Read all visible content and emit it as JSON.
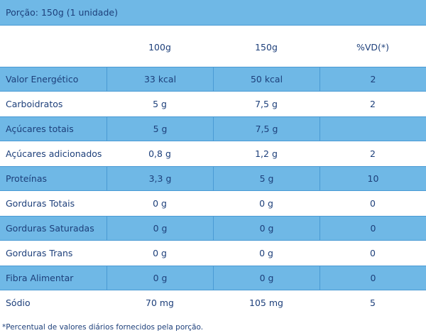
{
  "portion": "Porção: 150g (1 unidade)",
  "columns": [
    "100g",
    "150g",
    "%VD(*)"
  ],
  "rows": [
    {
      "name": "Valor Energético",
      "v100": "33 kcal",
      "v150": "50 kcal",
      "vd": "2"
    },
    {
      "name": "Carboidratos",
      "v100": "5 g",
      "v150": "7,5 g",
      "vd": "2"
    },
    {
      "name": "Açúcares totais",
      "v100": "5 g",
      "v150": "7,5 g",
      "vd": ""
    },
    {
      "name": "Açúcares adicionados",
      "v100": "0,8 g",
      "v150": "1,2 g",
      "vd": "2"
    },
    {
      "name": "Proteínas",
      "v100": "3,3 g",
      "v150": "5 g",
      "vd": "10"
    },
    {
      "name": "Gorduras Totais",
      "v100": "0 g",
      "v150": "0 g",
      "vd": "0"
    },
    {
      "name": "Gorduras Saturadas",
      "v100": "0 g",
      "v150": "0 g",
      "vd": "0"
    },
    {
      "name": "Gorduras Trans",
      "v100": "0 g",
      "v150": "0 g",
      "vd": "0"
    },
    {
      "name": "Fibra Alimentar",
      "v100": "0 g",
      "v150": "0 g",
      "vd": "0"
    },
    {
      "name": "Sódio",
      "v100": "70 mg",
      "v150": "105 mg",
      "vd": "5"
    }
  ],
  "footnote": "*Percentual de valores diários fornecidos pela porção.",
  "colors": {
    "band": "#6fb8e6",
    "line": "#4a9ad4",
    "text": "#1d3f7a"
  }
}
